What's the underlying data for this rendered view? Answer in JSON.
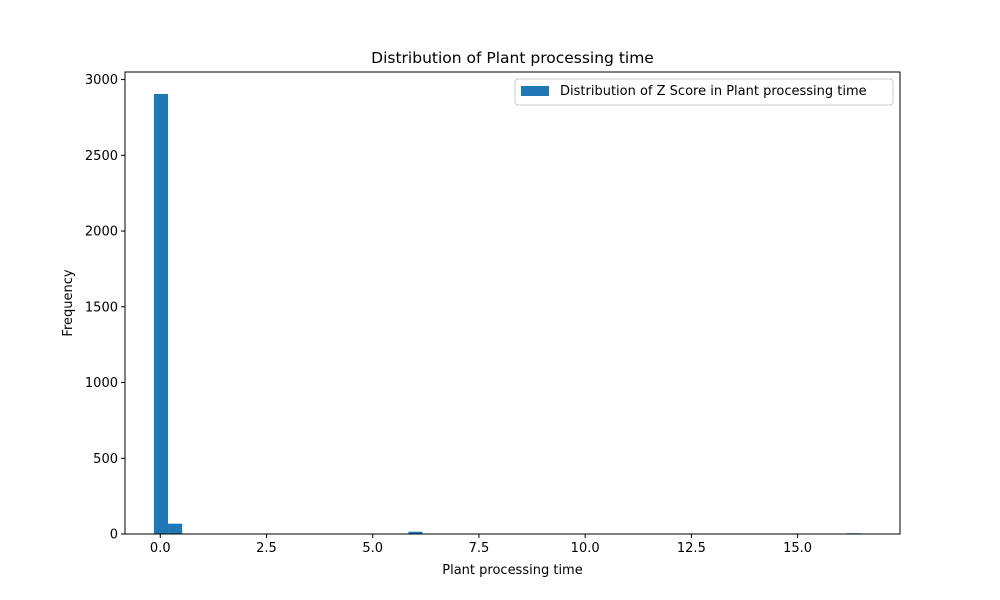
{
  "chart_data": {
    "type": "bar",
    "title": "Distribution of Plant processing time",
    "xlabel": "Plant processing time",
    "ylabel": "Frequency",
    "xlim": [
      -0.83,
      17.41
    ],
    "ylim": [
      0,
      3050
    ],
    "xticks": [
      0.0,
      2.5,
      5.0,
      7.5,
      10.0,
      12.5,
      15.0
    ],
    "xtick_labels": [
      "0.0",
      "2.5",
      "5.0",
      "7.5",
      "10.0",
      "12.5",
      "15.0"
    ],
    "yticks": [
      0,
      500,
      1000,
      1500,
      2000,
      2500,
      3000
    ],
    "ytick_labels": [
      "0",
      "500",
      "1000",
      "1500",
      "2000",
      "2500",
      "3000"
    ],
    "bins": {
      "start": -0.15,
      "width": 0.3328,
      "counts": [
        2905,
        68,
        0,
        0,
        0,
        0,
        0,
        0,
        0,
        0,
        0,
        0,
        0,
        0,
        0,
        0,
        0,
        0,
        15,
        0,
        0,
        0,
        0,
        0,
        0,
        0,
        0,
        0,
        0,
        0,
        0,
        0,
        0,
        0,
        0,
        0,
        0,
        0,
        0,
        0,
        0,
        0,
        0,
        0,
        0,
        0,
        0,
        0,
        0,
        5
      ]
    },
    "series": [
      {
        "name": "Distribution of Z Score in Plant processing time",
        "color": "#1f77b4"
      }
    ],
    "legend_position": "top-right",
    "grid": false
  }
}
